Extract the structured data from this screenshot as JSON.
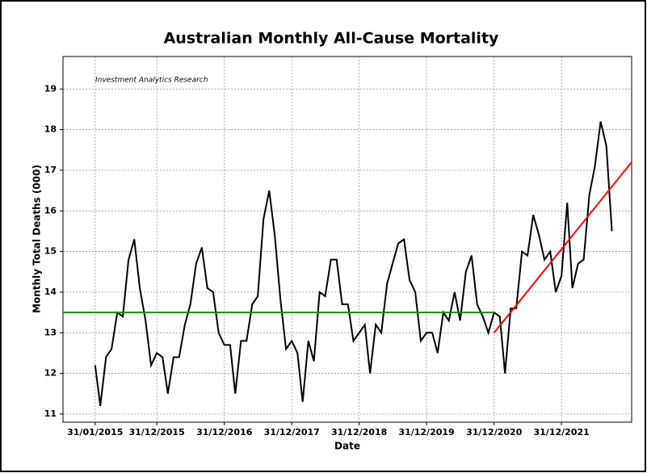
{
  "chart_data": {
    "type": "line",
    "title": "Australian Monthly All-Cause Mortality",
    "annotation": "Investment Analytics Research",
    "xlabel": "Date",
    "ylabel": "Monthly Total Deaths (000)",
    "x": [
      "2015-01-31",
      "2015-02-28",
      "2015-03-31",
      "2015-04-30",
      "2015-05-31",
      "2015-06-30",
      "2015-07-31",
      "2015-08-31",
      "2015-09-30",
      "2015-10-31",
      "2015-11-30",
      "2015-12-31",
      "2016-01-31",
      "2016-02-29",
      "2016-03-31",
      "2016-04-30",
      "2016-05-31",
      "2016-06-30",
      "2016-07-31",
      "2016-08-31",
      "2016-09-30",
      "2016-10-31",
      "2016-11-30",
      "2016-12-31",
      "2017-01-31",
      "2017-02-28",
      "2017-03-31",
      "2017-04-30",
      "2017-05-31",
      "2017-06-30",
      "2017-07-31",
      "2017-08-31",
      "2017-09-30",
      "2017-10-31",
      "2017-11-30",
      "2017-12-31",
      "2018-01-31",
      "2018-02-28",
      "2018-03-31",
      "2018-04-30",
      "2018-05-31",
      "2018-06-30",
      "2018-07-31",
      "2018-08-31",
      "2018-09-30",
      "2018-10-31",
      "2018-11-30",
      "2018-12-31",
      "2019-01-31",
      "2019-02-28",
      "2019-03-31",
      "2019-04-30",
      "2019-05-31",
      "2019-06-30",
      "2019-07-31",
      "2019-08-31",
      "2019-09-30",
      "2019-10-31",
      "2019-11-30",
      "2019-12-31",
      "2020-01-31",
      "2020-02-29",
      "2020-03-31",
      "2020-04-30",
      "2020-05-31",
      "2020-06-30",
      "2020-07-31",
      "2020-08-31",
      "2020-09-30",
      "2020-10-31",
      "2020-11-30",
      "2020-12-31",
      "2021-01-31",
      "2021-02-28",
      "2021-03-31",
      "2021-04-30",
      "2021-05-31",
      "2021-06-30",
      "2021-07-31",
      "2021-08-31",
      "2021-09-30",
      "2021-10-31",
      "2021-11-30",
      "2021-12-31",
      "2022-01-31",
      "2022-02-28",
      "2022-03-31",
      "2022-04-30",
      "2022-05-31",
      "2022-06-30",
      "2022-07-31",
      "2022-08-31",
      "2022-09-30"
    ],
    "series": [
      {
        "color": "#000000",
        "values": [
          12.2,
          11.2,
          12.4,
          12.6,
          13.5,
          13.4,
          14.8,
          15.3,
          14.1,
          13.3,
          12.2,
          12.5,
          12.4,
          11.5,
          12.4,
          12.4,
          13.2,
          13.7,
          14.7,
          15.1,
          14.1,
          14.0,
          13.0,
          12.7,
          12.7,
          11.5,
          12.8,
          12.8,
          13.7,
          13.9,
          15.8,
          16.5,
          15.4,
          13.8,
          12.6,
          12.8,
          12.5,
          11.3,
          12.8,
          12.3,
          14.0,
          13.9,
          14.8,
          14.8,
          13.7,
          13.7,
          12.8,
          13.0,
          13.2,
          12.0,
          13.2,
          13.0,
          14.2,
          14.7,
          15.2,
          15.3,
          14.3,
          14.0,
          12.8,
          13.0,
          13.0,
          12.5,
          13.5,
          13.3,
          14.0,
          13.3,
          14.5,
          14.9,
          13.7,
          13.4,
          13.0,
          13.5,
          13.4,
          12.0,
          13.6,
          13.6,
          15.0,
          14.9,
          15.9,
          15.4,
          14.8,
          15.0,
          14.0,
          14.4,
          16.2,
          14.1,
          14.7,
          14.8,
          16.4,
          17.1,
          18.2,
          17.6,
          15.5
        ]
      },
      {
        "color": "#1a8a1a",
        "x": [
          "2014-08-10",
          "2020-12-31"
        ],
        "values": [
          13.5,
          13.5
        ]
      },
      {
        "color": "#ff0000",
        "x": [
          "2020-12-31",
          "2023-01-15"
        ],
        "values": [
          13.0,
          17.2
        ]
      }
    ],
    "xlim": [
      "2014-08-10",
      "2023-01-15"
    ],
    "xticks": [
      {
        "value": "2015-01-31",
        "label": "31/01/2015"
      },
      {
        "value": "2015-12-31",
        "label": "31/12/2015"
      },
      {
        "value": "2016-12-31",
        "label": "31/12/2016"
      },
      {
        "value": "2017-12-31",
        "label": "31/12/2017"
      },
      {
        "value": "2018-12-31",
        "label": "31/12/2018"
      },
      {
        "value": "2019-12-31",
        "label": "31/12/2019"
      },
      {
        "value": "2020-12-31",
        "label": "31/12/2020"
      },
      {
        "value": "2021-12-31",
        "label": "31/12/2021"
      }
    ],
    "ylim": [
      10.8,
      19.8
    ],
    "yticks": [
      11,
      12,
      13,
      14,
      15,
      16,
      17,
      18,
      19
    ],
    "grid": true
  }
}
